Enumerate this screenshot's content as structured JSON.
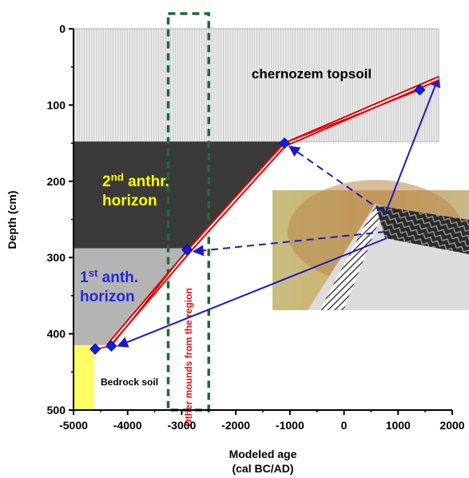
{
  "chart_data": {
    "type": "line",
    "xlabel": "Modeled age",
    "xlabel_unit": "(cal BC/AD)",
    "ylabel": "Depth (cm)",
    "xlim": [
      -5000,
      2000
    ],
    "ylim": [
      0,
      500
    ],
    "y_inverted": true,
    "x_ticks": [
      "-5000",
      "-4000",
      "-3000",
      "-2000",
      "-1000",
      "0",
      "1000",
      "2000"
    ],
    "y_ticks": [
      "0",
      "100",
      "200",
      "300",
      "400",
      "500"
    ],
    "layers": [
      {
        "label": "chernozem topsoil",
        "top": 0,
        "bottom": 148,
        "color": "#e6e6e6"
      },
      {
        "label_main": "2",
        "label_sup": "nd",
        "label_rest": " anthr.",
        "label_line2": "horizon",
        "top": 148,
        "bottom": 288,
        "color": "#3a3a3a",
        "text_color": "#ffff00"
      },
      {
        "label_main": "1",
        "label_sup": "st",
        "label_rest": " anth.",
        "label_line2": "horizon",
        "top": 288,
        "bottom": 415,
        "color": "#b4b4b4",
        "text_color": "#1f2bd8"
      },
      {
        "label": "Bedrock soil",
        "top": 415,
        "bottom": 500,
        "color": "#ffff66"
      }
    ],
    "other_mounds_label": "Other mounds from the region",
    "other_mounds_range": [
      -3250,
      -2500
    ],
    "series": [
      {
        "values": [
          [
            -4600,
            420
          ],
          [
            -4300,
            416
          ],
          [
            -2900,
            290
          ],
          [
            -1100,
            150
          ],
          [
            1400,
            80
          ]
        ]
      }
    ],
    "model_line": [
      [
        1750,
        65
      ],
      [
        -1100,
        152
      ],
      [
        -2850,
        290
      ],
      [
        -4350,
        415
      ]
    ]
  }
}
